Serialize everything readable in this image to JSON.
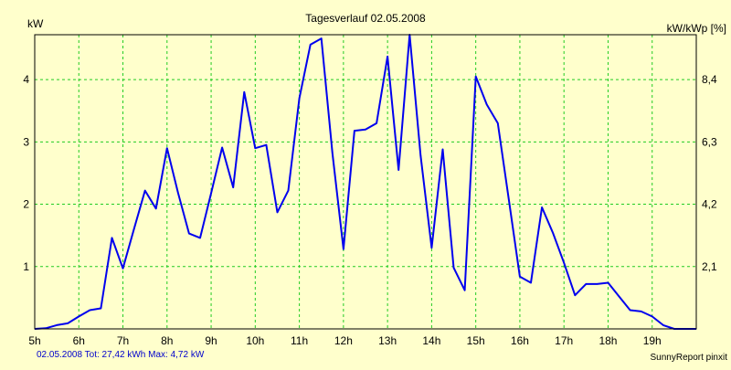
{
  "chart_data": {
    "type": "line",
    "title": "Tagesverlauf 02.05.2008",
    "ylabel_left": "kW",
    "ylabel_right": "kW/kWp [%]",
    "footer_left": "02.05.2008 Tot: 27,42 kWh Max: 4,72 kW",
    "footer_right": "SunnyReport pinxit",
    "x_ticks": [
      "5h",
      "6h",
      "7h",
      "8h",
      "9h",
      "10h",
      "11h",
      "12h",
      "13h",
      "14h",
      "15h",
      "16h",
      "17h",
      "18h",
      "19h"
    ],
    "y_ticks_left": [
      "1",
      "2",
      "3",
      "4"
    ],
    "y_ticks_right": [
      "2,1",
      "4,2",
      "6,3",
      "8,4"
    ],
    "xlim": [
      5,
      20
    ],
    "ylim": [
      0,
      4.72
    ],
    "grid": true,
    "series": [
      {
        "color": "#0000ee",
        "x": [
          5.0,
          5.25,
          5.5,
          5.75,
          6.0,
          6.25,
          6.5,
          6.75,
          7.0,
          7.25,
          7.5,
          7.75,
          8.0,
          8.25,
          8.5,
          8.75,
          9.0,
          9.25,
          9.5,
          9.75,
          10.0,
          10.25,
          10.5,
          10.75,
          11.0,
          11.25,
          11.5,
          11.75,
          12.0,
          12.25,
          12.5,
          12.75,
          13.0,
          13.25,
          13.5,
          13.75,
          14.0,
          14.25,
          14.5,
          14.75,
          15.0,
          15.25,
          15.5,
          15.75,
          16.0,
          16.25,
          16.5,
          16.75,
          17.0,
          17.25,
          17.5,
          17.75,
          18.0,
          18.25,
          18.5,
          18.75,
          19.0,
          19.25,
          19.5,
          19.75,
          20.0
        ],
        "values": [
          0.0,
          0.01,
          0.06,
          0.09,
          0.2,
          0.3,
          0.33,
          1.46,
          0.97,
          1.6,
          2.22,
          1.93,
          2.9,
          2.18,
          1.53,
          1.46,
          2.18,
          2.91,
          2.27,
          3.8,
          2.9,
          2.95,
          1.87,
          2.22,
          3.7,
          4.56,
          4.66,
          2.82,
          1.28,
          3.18,
          3.2,
          3.3,
          4.37,
          2.55,
          4.72,
          2.78,
          1.3,
          2.88,
          0.98,
          0.62,
          4.05,
          3.6,
          3.3,
          2.07,
          0.84,
          0.74,
          1.95,
          1.54,
          1.06,
          0.54,
          0.72,
          0.72,
          0.74,
          0.52,
          0.3,
          0.28,
          0.2,
          0.06,
          0.0,
          0.0,
          0.0
        ]
      }
    ]
  }
}
